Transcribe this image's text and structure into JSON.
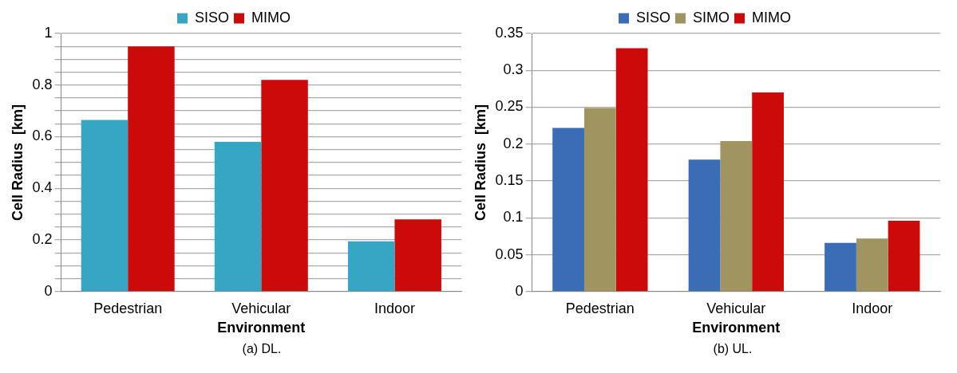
{
  "chart_data": [
    {
      "type": "bar",
      "categories": [
        "Pedestrian",
        "Vehicular",
        "Indoor"
      ],
      "xlabel": "Environment",
      "ylabel": "Cell Radius  [km]",
      "series": [
        {
          "name": "SISO",
          "color": "#37a6c4",
          "values": [
            0.665,
            0.58,
            0.195
          ]
        },
        {
          "name": "MIMO",
          "color": "#cc0a0a",
          "values": [
            0.95,
            0.82,
            0.28
          ]
        }
      ],
      "ylim": [
        0,
        1
      ],
      "yticks": [
        0,
        {
          "value": 0.05,
          "label": null
        },
        {
          "value": 0.1,
          "label": null
        },
        {
          "value": 0.15,
          "label": null
        },
        0.2,
        {
          "value": 0.25,
          "label": null
        },
        {
          "value": 0.3,
          "label": null
        },
        {
          "value": 0.35,
          "label": null
        },
        0.4,
        {
          "value": 0.45,
          "label": null
        },
        {
          "value": 0.5,
          "label": null
        },
        {
          "value": 0.55,
          "label": null
        },
        0.6,
        {
          "value": 0.65,
          "label": null
        },
        {
          "value": 0.7,
          "label": null
        },
        {
          "value": 0.75,
          "label": null
        },
        0.8,
        {
          "value": 0.85,
          "label": null
        },
        {
          "value": 0.9,
          "label": null
        },
        {
          "value": 0.95,
          "label": null
        },
        1
      ],
      "grid": "y",
      "legend": "top",
      "annotations": [
        "(a)  DL."
      ]
    },
    {
      "type": "bar",
      "categories": [
        "Pedestrian",
        "Vehicular",
        "Indoor"
      ],
      "xlabel": "Environment",
      "ylabel": "Cell Radius  [km]",
      "series": [
        {
          "name": "SISO",
          "color": "#3a6db5",
          "values": [
            0.222,
            0.179,
            0.066
          ]
        },
        {
          "name": "SIMO",
          "color": "#a09560",
          "values": [
            0.249,
            0.204,
            0.072
          ]
        },
        {
          "name": "MIMO",
          "color": "#cc0a0a",
          "values": [
            0.33,
            0.27,
            0.096
          ]
        }
      ],
      "ylim": [
        0,
        0.35
      ],
      "yticks": [
        0,
        0.05,
        0.1,
        0.15,
        0.2,
        0.25,
        0.3,
        0.35
      ],
      "grid": "y",
      "legend": "top",
      "annotations": [
        "(b)  UL."
      ]
    }
  ]
}
